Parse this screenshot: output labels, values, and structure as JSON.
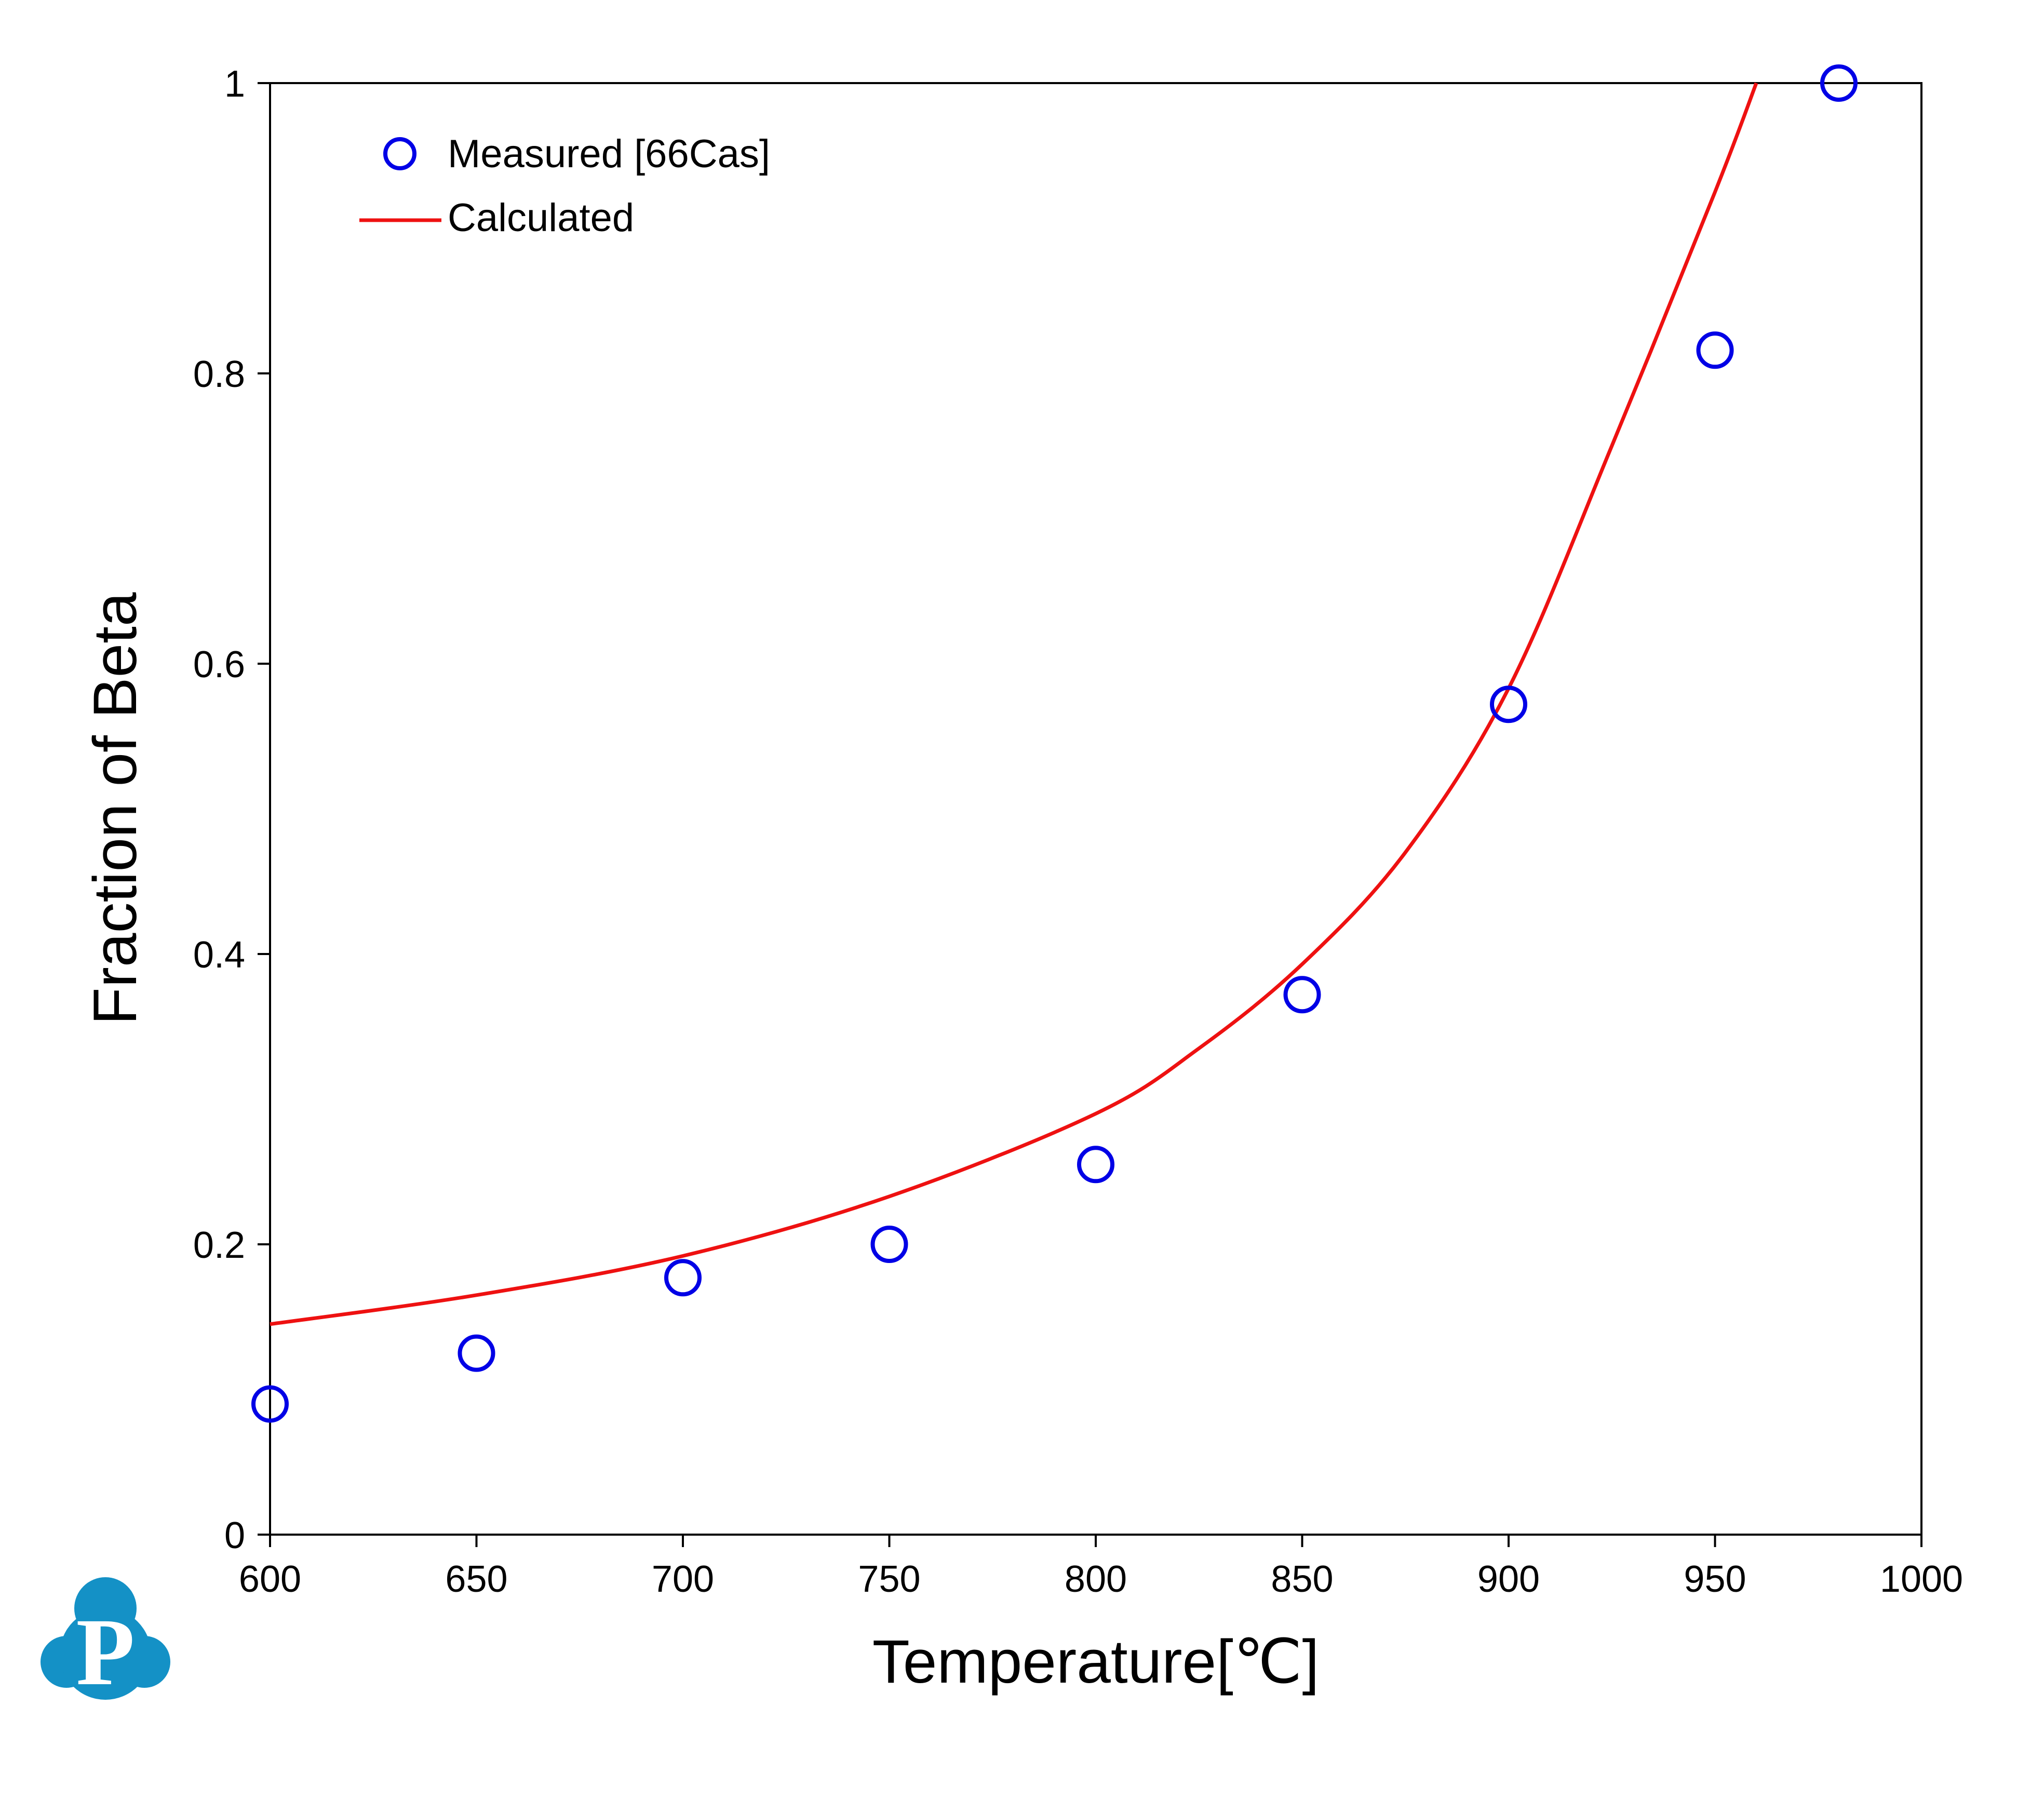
{
  "chart_data": {
    "type": "scatter",
    "title": "",
    "xlabel": "Temperature[℃]",
    "ylabel": "Fraction of Beta",
    "xlim": [
      600,
      1000
    ],
    "ylim": [
      0,
      1
    ],
    "xticks": [
      600,
      650,
      700,
      750,
      800,
      850,
      900,
      950,
      1000
    ],
    "yticks": [
      0,
      0.2,
      0.4,
      0.6,
      0.8,
      1
    ],
    "xtick_labels": [
      "600",
      "650",
      "700",
      "750",
      "800",
      "850",
      "900",
      "950",
      "1000"
    ],
    "ytick_labels": [
      "0",
      "0.2",
      "0.4",
      "0.6",
      "0.8",
      "1"
    ],
    "grid": false,
    "legend_position": "top-left",
    "series": [
      {
        "name": "Measured [66Cas]",
        "kind": "scatter",
        "marker": "open-circle",
        "color": "#0000e6",
        "x": [
          600,
          650,
          700,
          750,
          800,
          850,
          900,
          950,
          980
        ],
        "y": [
          0.09,
          0.125,
          0.177,
          0.2,
          0.255,
          0.372,
          0.572,
          0.816,
          1.0
        ]
      },
      {
        "name": "Calculated",
        "kind": "line",
        "color": "#ee1111",
        "x": [
          600,
          650,
          700,
          750,
          800,
          825,
          850,
          875,
          900,
          925,
          950,
          960
        ],
        "y": [
          0.145,
          0.165,
          0.192,
          0.233,
          0.29,
          0.335,
          0.393,
          0.47,
          0.583,
          0.75,
          0.925,
          1.0
        ]
      }
    ]
  },
  "logo": {
    "letter": "P",
    "color": "#1491c6"
  }
}
